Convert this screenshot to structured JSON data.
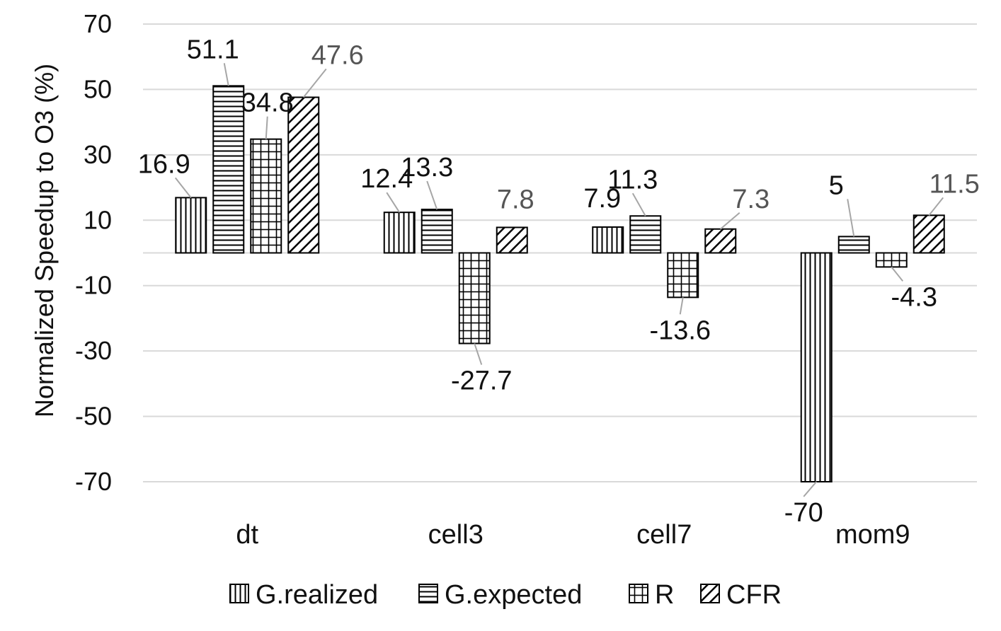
{
  "chart_data": {
    "type": "bar",
    "title": "",
    "xlabel": "",
    "ylabel": "Normalized Speedup to O3 (%)",
    "ylim": [
      -70,
      70
    ],
    "yticks": [
      70,
      50,
      30,
      10,
      -10,
      -30,
      -50,
      -70
    ],
    "grid": true,
    "legend_position": "bottom",
    "categories": [
      "dt",
      "cell3",
      "cell7",
      "mom9"
    ],
    "series": [
      {
        "name": "G.realized",
        "pattern": "vertical-lines",
        "values": [
          16.9,
          12.4,
          7.9,
          -70
        ],
        "labels": [
          "16.9",
          "12.4",
          "7.9",
          "-70"
        ],
        "label_color": "#111111"
      },
      {
        "name": "G.expected",
        "pattern": "horizontal-lines",
        "values": [
          51.1,
          13.3,
          11.3,
          5
        ],
        "labels": [
          "51.1",
          "13.3",
          "11.3",
          "5"
        ],
        "label_color": "#111111"
      },
      {
        "name": "R",
        "pattern": "grid",
        "values": [
          34.8,
          -27.7,
          -13.6,
          -4.3
        ],
        "labels": [
          "34.8",
          "-27.7",
          "-13.6",
          "-4.3"
        ],
        "label_color": "#111111"
      },
      {
        "name": "CFR",
        "pattern": "diagonal-lines",
        "values": [
          47.6,
          7.8,
          7.3,
          11.5
        ],
        "labels": [
          "47.6",
          "7.8",
          "7.3",
          "11.5"
        ],
        "label_color": "#555555"
      }
    ],
    "colors": {
      "bar_stroke": "#000000",
      "bar_fill": "#ffffff",
      "grid": "#d9d9d9",
      "leader": "#a6a6a6"
    }
  }
}
